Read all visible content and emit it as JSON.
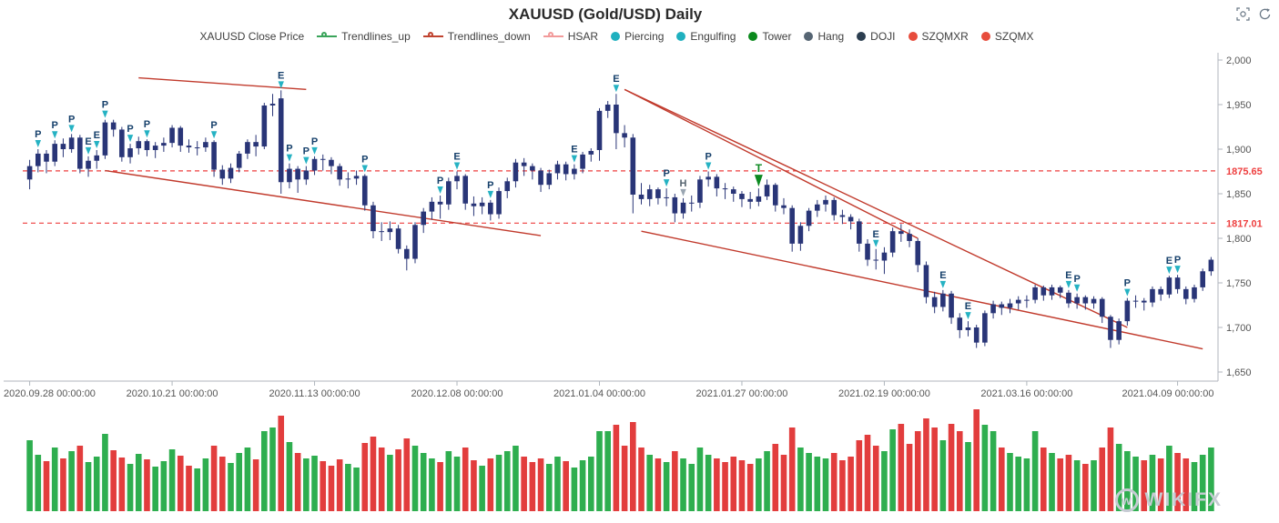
{
  "title": "XAUUSD (Gold/USD) Daily",
  "toolbox": {
    "icons": [
      {
        "name": "data-zoom"
      },
      {
        "name": "restore"
      }
    ]
  },
  "legend": {
    "items": [
      {
        "label": "XAUUSD Close Price",
        "marker": "none",
        "color": "#333333"
      },
      {
        "label": "Trendlines_up",
        "marker": "line-circle",
        "color": "#3aa45a"
      },
      {
        "label": "Trendlines_down",
        "marker": "line-circle",
        "color": "#c0432f"
      },
      {
        "label": "HSAR",
        "marker": "line-circle",
        "color": "#f29a9a"
      },
      {
        "label": "Piercing",
        "marker": "circle",
        "color": "#1fb0bf"
      },
      {
        "label": "Engulfing",
        "marker": "circle",
        "color": "#1fb0bf"
      },
      {
        "label": "Tower",
        "marker": "circle",
        "color": "#0b8a1d"
      },
      {
        "label": "Hang",
        "marker": "circle",
        "color": "#566573"
      },
      {
        "label": "DOJI",
        "marker": "circle",
        "color": "#2c3e50"
      },
      {
        "label": "SZQMXR",
        "marker": "circle",
        "color": "#e74c3c"
      },
      {
        "label": "SZQMX",
        "marker": "circle",
        "color": "#e74c3c"
      }
    ]
  },
  "watermark": {
    "text": "WIKIFX",
    "initial": "w"
  },
  "chart_data": {
    "type": "candlestick",
    "title": "XAUUSD (Gold/USD) Daily",
    "ylim": [
      1650,
      2000
    ],
    "y_ticks": [
      {
        "v": 2000,
        "label": "2,000"
      },
      {
        "v": 1950,
        "label": "1,950"
      },
      {
        "v": 1900,
        "label": "1,900"
      },
      {
        "v": 1850,
        "label": "1,850"
      },
      {
        "v": 1800,
        "label": "1,800"
      },
      {
        "v": 1750,
        "label": "1,750"
      },
      {
        "v": 1700,
        "label": "1,700"
      },
      {
        "v": 1650,
        "label": "1,650"
      }
    ],
    "x_ticks": [
      {
        "i": 0,
        "label": "2020.09.28 00:00:00"
      },
      {
        "i": 17,
        "label": "2020.10.21 00:00:00"
      },
      {
        "i": 34,
        "label": "2020.11.13 00:00:00"
      },
      {
        "i": 51,
        "label": "2020.12.08 00:00:00"
      },
      {
        "i": 68,
        "label": "2021.01.04 00:00:00"
      },
      {
        "i": 85,
        "label": "2021.01.27 00:00:00"
      },
      {
        "i": 102,
        "label": "2021.02.19 00:00:00"
      },
      {
        "i": 119,
        "label": "2021.03.16 00:00:00"
      },
      {
        "i": 137,
        "label": "2021.04.09 00:00:00"
      }
    ],
    "hsar_levels": [
      {
        "value": 1875.65,
        "label": "1875.65"
      },
      {
        "value": 1817.01,
        "label": "1817.01"
      }
    ],
    "trendlines": [
      [
        13,
        1980,
        33,
        1967
      ],
      [
        9,
        1876,
        61,
        1803
      ],
      [
        71,
        1967,
        106,
        1800
      ],
      [
        71,
        1967,
        131,
        1700
      ],
      [
        73,
        1808,
        140,
        1676
      ]
    ],
    "candles": [
      [
        1866,
        1888,
        1855,
        1881
      ],
      [
        1881,
        1900,
        1874,
        1895
      ],
      [
        1895,
        1899,
        1873,
        1886
      ],
      [
        1886,
        1910,
        1881,
        1906
      ],
      [
        1906,
        1912,
        1891,
        1900
      ],
      [
        1900,
        1917,
        1896,
        1913
      ],
      [
        1913,
        1916,
        1873,
        1878
      ],
      [
        1878,
        1892,
        1869,
        1887
      ],
      [
        1887,
        1899,
        1878,
        1893
      ],
      [
        1893,
        1933,
        1889,
        1930
      ],
      [
        1930,
        1933,
        1914,
        1922
      ],
      [
        1922,
        1925,
        1886,
        1891
      ],
      [
        1891,
        1906,
        1884,
        1901
      ],
      [
        1901,
        1914,
        1894,
        1909
      ],
      [
        1909,
        1911,
        1892,
        1899
      ],
      [
        1899,
        1908,
        1890,
        1904
      ],
      [
        1904,
        1913,
        1897,
        1907
      ],
      [
        1907,
        1927,
        1902,
        1924
      ],
      [
        1924,
        1926,
        1897,
        1904
      ],
      [
        1904,
        1911,
        1896,
        1902
      ],
      [
        1902,
        1909,
        1893,
        1902
      ],
      [
        1902,
        1913,
        1897,
        1908
      ],
      [
        1908,
        1910,
        1869,
        1877
      ],
      [
        1877,
        1882,
        1860,
        1867
      ],
      [
        1867,
        1884,
        1862,
        1879
      ],
      [
        1879,
        1898,
        1874,
        1895
      ],
      [
        1895,
        1911,
        1889,
        1908
      ],
      [
        1908,
        1916,
        1892,
        1903
      ],
      [
        1903,
        1952,
        1900,
        1949
      ],
      [
        1949,
        1962,
        1937,
        1951
      ],
      [
        1957,
        1966,
        1850,
        1863
      ],
      [
        1863,
        1884,
        1856,
        1878
      ],
      [
        1878,
        1881,
        1851,
        1866
      ],
      [
        1866,
        1881,
        1860,
        1876
      ],
      [
        1876,
        1892,
        1871,
        1889
      ],
      [
        1889,
        1894,
        1876,
        1888
      ],
      [
        1888,
        1891,
        1872,
        1881
      ],
      [
        1881,
        1884,
        1859,
        1866
      ],
      [
        1866,
        1874,
        1856,
        1867
      ],
      [
        1867,
        1876,
        1860,
        1870
      ],
      [
        1870,
        1872,
        1831,
        1837
      ],
      [
        1837,
        1841,
        1800,
        1808
      ],
      [
        1808,
        1818,
        1797,
        1807
      ],
      [
        1807,
        1819,
        1798,
        1811
      ],
      [
        1811,
        1815,
        1783,
        1788
      ],
      [
        1788,
        1792,
        1764,
        1777
      ],
      [
        1777,
        1818,
        1772,
        1815
      ],
      [
        1815,
        1834,
        1806,
        1830
      ],
      [
        1830,
        1846,
        1821,
        1841
      ],
      [
        1841,
        1848,
        1822,
        1838
      ],
      [
        1838,
        1868,
        1832,
        1864
      ],
      [
        1864,
        1875,
        1855,
        1870
      ],
      [
        1870,
        1872,
        1832,
        1839
      ],
      [
        1839,
        1847,
        1825,
        1836
      ],
      [
        1836,
        1846,
        1827,
        1840
      ],
      [
        1840,
        1843,
        1820,
        1827
      ],
      [
        1827,
        1857,
        1822,
        1853
      ],
      [
        1853,
        1868,
        1845,
        1864
      ],
      [
        1864,
        1889,
        1857,
        1885
      ],
      [
        1885,
        1890,
        1870,
        1881
      ],
      [
        1881,
        1884,
        1866,
        1876
      ],
      [
        1876,
        1879,
        1852,
        1860
      ],
      [
        1860,
        1877,
        1855,
        1873
      ],
      [
        1873,
        1887,
        1866,
        1883
      ],
      [
        1883,
        1886,
        1865,
        1872
      ],
      [
        1872,
        1883,
        1866,
        1878
      ],
      [
        1878,
        1897,
        1873,
        1894
      ],
      [
        1894,
        1901,
        1886,
        1898
      ],
      [
        1899,
        1946,
        1887,
        1943
      ],
      [
        1943,
        1954,
        1935,
        1950
      ],
      [
        1950,
        1962,
        1900,
        1918
      ],
      [
        1918,
        1927,
        1902,
        1913
      ],
      [
        1913,
        1917,
        1828,
        1849
      ],
      [
        1849,
        1862,
        1838,
        1844
      ],
      [
        1844,
        1860,
        1836,
        1855
      ],
      [
        1855,
        1857,
        1838,
        1845
      ],
      [
        1845,
        1856,
        1836,
        1846
      ],
      [
        1846,
        1850,
        1818,
        1828
      ],
      [
        1828,
        1845,
        1822,
        1840
      ],
      [
        1840,
        1848,
        1830,
        1840
      ],
      [
        1840,
        1870,
        1834,
        1866
      ],
      [
        1866,
        1875,
        1858,
        1869
      ],
      [
        1869,
        1872,
        1847,
        1856
      ],
      [
        1856,
        1862,
        1844,
        1855
      ],
      [
        1855,
        1858,
        1841,
        1850
      ],
      [
        1850,
        1853,
        1835,
        1844
      ],
      [
        1844,
        1852,
        1833,
        1841
      ],
      [
        1841,
        1856,
        1836,
        1847
      ],
      [
        1847,
        1866,
        1843,
        1860
      ],
      [
        1860,
        1862,
        1830,
        1837
      ],
      [
        1837,
        1845,
        1827,
        1834
      ],
      [
        1834,
        1837,
        1785,
        1794
      ],
      [
        1794,
        1818,
        1786,
        1814
      ],
      [
        1814,
        1834,
        1808,
        1831
      ],
      [
        1831,
        1843,
        1824,
        1838
      ],
      [
        1838,
        1848,
        1830,
        1843
      ],
      [
        1843,
        1846,
        1820,
        1826
      ],
      [
        1826,
        1832,
        1816,
        1824
      ],
      [
        1824,
        1827,
        1810,
        1819
      ],
      [
        1819,
        1822,
        1785,
        1794
      ],
      [
        1794,
        1799,
        1769,
        1776
      ],
      [
        1776,
        1788,
        1765,
        1775
      ],
      [
        1775,
        1790,
        1760,
        1784
      ],
      [
        1784,
        1812,
        1779,
        1808
      ],
      [
        1808,
        1816,
        1796,
        1805
      ],
      [
        1805,
        1810,
        1790,
        1797
      ],
      [
        1797,
        1800,
        1762,
        1770
      ],
      [
        1770,
        1774,
        1727,
        1734
      ],
      [
        1734,
        1740,
        1716,
        1723
      ],
      [
        1723,
        1742,
        1718,
        1738
      ],
      [
        1738,
        1741,
        1704,
        1711
      ],
      [
        1711,
        1716,
        1688,
        1697
      ],
      [
        1697,
        1707,
        1690,
        1700
      ],
      [
        1700,
        1703,
        1677,
        1683
      ],
      [
        1683,
        1719,
        1679,
        1716
      ],
      [
        1716,
        1730,
        1710,
        1726
      ],
      [
        1726,
        1729,
        1714,
        1722
      ],
      [
        1722,
        1732,
        1716,
        1727
      ],
      [
        1727,
        1735,
        1720,
        1731
      ],
      [
        1731,
        1736,
        1722,
        1731
      ],
      [
        1731,
        1748,
        1727,
        1745
      ],
      [
        1745,
        1747,
        1730,
        1736
      ],
      [
        1736,
        1748,
        1731,
        1745
      ],
      [
        1745,
        1747,
        1733,
        1739
      ],
      [
        1739,
        1742,
        1722,
        1727
      ],
      [
        1727,
        1738,
        1721,
        1734
      ],
      [
        1734,
        1736,
        1720,
        1727
      ],
      [
        1727,
        1735,
        1721,
        1732
      ],
      [
        1732,
        1734,
        1705,
        1712
      ],
      [
        1712,
        1714,
        1677,
        1686
      ],
      [
        1686,
        1710,
        1681,
        1707
      ],
      [
        1707,
        1733,
        1702,
        1730
      ],
      [
        1730,
        1736,
        1722,
        1730
      ],
      [
        1730,
        1733,
        1719,
        1728
      ],
      [
        1728,
        1746,
        1723,
        1743
      ],
      [
        1743,
        1746,
        1730,
        1737
      ],
      [
        1737,
        1758,
        1733,
        1756
      ],
      [
        1756,
        1759,
        1738,
        1743
      ],
      [
        1743,
        1746,
        1726,
        1732
      ],
      [
        1732,
        1748,
        1728,
        1745
      ],
      [
        1745,
        1766,
        1741,
        1763
      ],
      [
        1763,
        1779,
        1758,
        1776
      ]
    ],
    "volumes": [
      78,
      62,
      55,
      70,
      58,
      66,
      72,
      54,
      60,
      85,
      67,
      59,
      52,
      63,
      57,
      49,
      55,
      68,
      61,
      50,
      47,
      58,
      72,
      60,
      53,
      64,
      70,
      57,
      88,
      92,
      105,
      76,
      64,
      58,
      61,
      55,
      50,
      57,
      52,
      48,
      75,
      82,
      70,
      62,
      68,
      80,
      72,
      64,
      58,
      54,
      66,
      60,
      70,
      56,
      50,
      58,
      62,
      66,
      72,
      60,
      54,
      58,
      52,
      60,
      55,
      48,
      56,
      60,
      88,
      88,
      95,
      72,
      98,
      70,
      62,
      58,
      54,
      66,
      58,
      52,
      70,
      62,
      58,
      54,
      60,
      56,
      52,
      58,
      66,
      74,
      62,
      92,
      70,
      64,
      60,
      58,
      64,
      56,
      60,
      78,
      84,
      72,
      66,
      90,
      96,
      74,
      88,
      102,
      92,
      78,
      96,
      88,
      76,
      112,
      95,
      88,
      70,
      64,
      60,
      58,
      88,
      70,
      64,
      58,
      62,
      56,
      52,
      56,
      70,
      92,
      74,
      66,
      60,
      56,
      62,
      58,
      72,
      64,
      58,
      54,
      62,
      70
    ],
    "annotations": [
      {
        "i": 1,
        "t": "P"
      },
      {
        "i": 3,
        "t": "P"
      },
      {
        "i": 5,
        "t": "P"
      },
      {
        "i": 7,
        "t": "E"
      },
      {
        "i": 8,
        "t": "E"
      },
      {
        "i": 9,
        "t": "P"
      },
      {
        "i": 12,
        "t": "P"
      },
      {
        "i": 14,
        "t": "P"
      },
      {
        "i": 22,
        "t": "P"
      },
      {
        "i": 30,
        "t": "E"
      },
      {
        "i": 31,
        "t": "P"
      },
      {
        "i": 33,
        "t": "P"
      },
      {
        "i": 34,
        "t": "P"
      },
      {
        "i": 40,
        "t": "P"
      },
      {
        "i": 49,
        "t": "P"
      },
      {
        "i": 51,
        "t": "E"
      },
      {
        "i": 55,
        "t": "P"
      },
      {
        "i": 65,
        "t": "E"
      },
      {
        "i": 70,
        "t": "E"
      },
      {
        "i": 76,
        "t": "P"
      },
      {
        "i": 78,
        "t": "H"
      },
      {
        "i": 81,
        "t": "P"
      },
      {
        "i": 87,
        "t": "T"
      },
      {
        "i": 101,
        "t": "E"
      },
      {
        "i": 109,
        "t": "E"
      },
      {
        "i": 112,
        "t": "E"
      },
      {
        "i": 124,
        "t": "E"
      },
      {
        "i": 125,
        "t": "P"
      },
      {
        "i": 131,
        "t": "P"
      },
      {
        "i": 136,
        "t": "E"
      },
      {
        "i": 137,
        "t": "P"
      }
    ],
    "annotation_styles": {
      "P": {
        "letter": "#16406b",
        "arrow": "#25b2c3"
      },
      "E": {
        "letter": "#16406b",
        "arrow": "#25b2c3"
      },
      "T": {
        "letter": "#0c8a21",
        "arrow": "#0c8a21"
      },
      "H": {
        "letter": "#55636f",
        "arrow": "#9aa6b2"
      }
    },
    "colors": {
      "candle": "#293577",
      "trendline": "#c13a2c",
      "hsar": "#ee3f3f",
      "volume_up": "#2eae4f",
      "volume_down": "#e23d3d",
      "axis": "#b0b6bd",
      "tick_text": "#555555"
    }
  }
}
